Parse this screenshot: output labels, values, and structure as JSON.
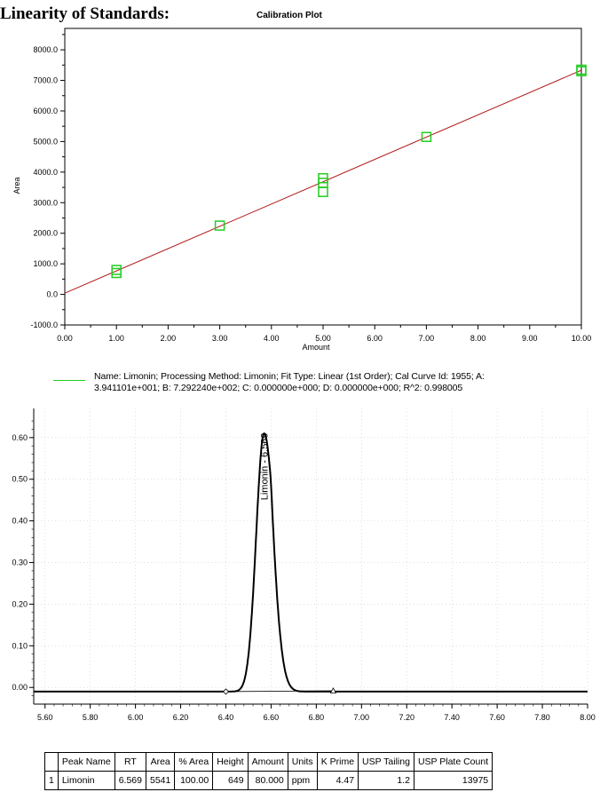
{
  "page": {
    "heading": "Linearity of Standards:",
    "legend_line1": "Name: Limonin;  Processing Method: Limonin;  Fit Type: Linear (1st Order);  Cal Curve Id: 1955;  A:",
    "legend_line2": "3.941101e+001;  B: 7.292240e+002;  C: 0.000000e+000;  D: 0.000000e+000;  R^2: 0.998005"
  },
  "chart_data": [
    {
      "type": "scatter",
      "title": "Calibration Plot",
      "xlabel": "Amount",
      "ylabel": "Area",
      "xlim": [
        0,
        10
      ],
      "ylim": [
        -1000,
        8700
      ],
      "x_ticks": [
        "0.00",
        "1.00",
        "2.00",
        "3.00",
        "4.00",
        "5.00",
        "6.00",
        "7.00",
        "8.00",
        "9.00",
        "10.00"
      ],
      "y_ticks": [
        "-1000.0",
        "0.0",
        "1000.0",
        "2000.0",
        "3000.0",
        "4000.0",
        "5000.0",
        "6000.0",
        "7000.0",
        "8000.0"
      ],
      "points": [
        {
          "x": 1.0,
          "y": 700
        },
        {
          "x": 1.0,
          "y": 800
        },
        {
          "x": 3.0,
          "y": 2250
        },
        {
          "x": 5.0,
          "y": 3350
        },
        {
          "x": 5.0,
          "y": 3650
        },
        {
          "x": 5.0,
          "y": 3800
        },
        {
          "x": 7.0,
          "y": 5150
        },
        {
          "x": 10.0,
          "y": 7300
        },
        {
          "x": 10.0,
          "y": 7350
        }
      ],
      "fit": {
        "intercept": 39.41101,
        "slope": 729.224,
        "x_range": [
          0,
          10
        ]
      },
      "colors": {
        "marker": "#22cc22",
        "fit": "#b01818"
      },
      "grid": false
    },
    {
      "type": "line",
      "xlim": [
        5.55,
        8.0
      ],
      "ylim": [
        -0.04,
        0.67
      ],
      "x_ticks": [
        "5.60",
        "5.80",
        "6.00",
        "6.20",
        "6.40",
        "6.60",
        "6.80",
        "7.00",
        "7.20",
        "7.40",
        "7.60",
        "7.80",
        "8.00"
      ],
      "y_ticks": [
        "0.00",
        "0.10",
        "0.20",
        "0.30",
        "0.40",
        "0.50",
        "0.60"
      ],
      "peak": {
        "label": "Limonin - 6.569",
        "rt": 6.569,
        "apex": 0.62,
        "sigma_left": 0.035,
        "tail_tau": 0.06,
        "start_x": 6.4,
        "end_x": 6.875
      },
      "baseline_level": -0.01,
      "colors": {
        "trace": "#000000",
        "grid": "#cccccc"
      },
      "grid": true
    }
  ],
  "peak_table": {
    "headers": [
      "",
      "Peak Name",
      "RT",
      "Area",
      "% Area",
      "Height",
      "Amount",
      "Units",
      "K Prime",
      "USP Tailing",
      "USP Plate Count"
    ],
    "rows": [
      [
        "1",
        "Limonin",
        "6.569",
        "5541",
        "100.00",
        "649",
        "80.000",
        "ppm",
        "4.47",
        "1.2",
        "13975"
      ]
    ]
  }
}
